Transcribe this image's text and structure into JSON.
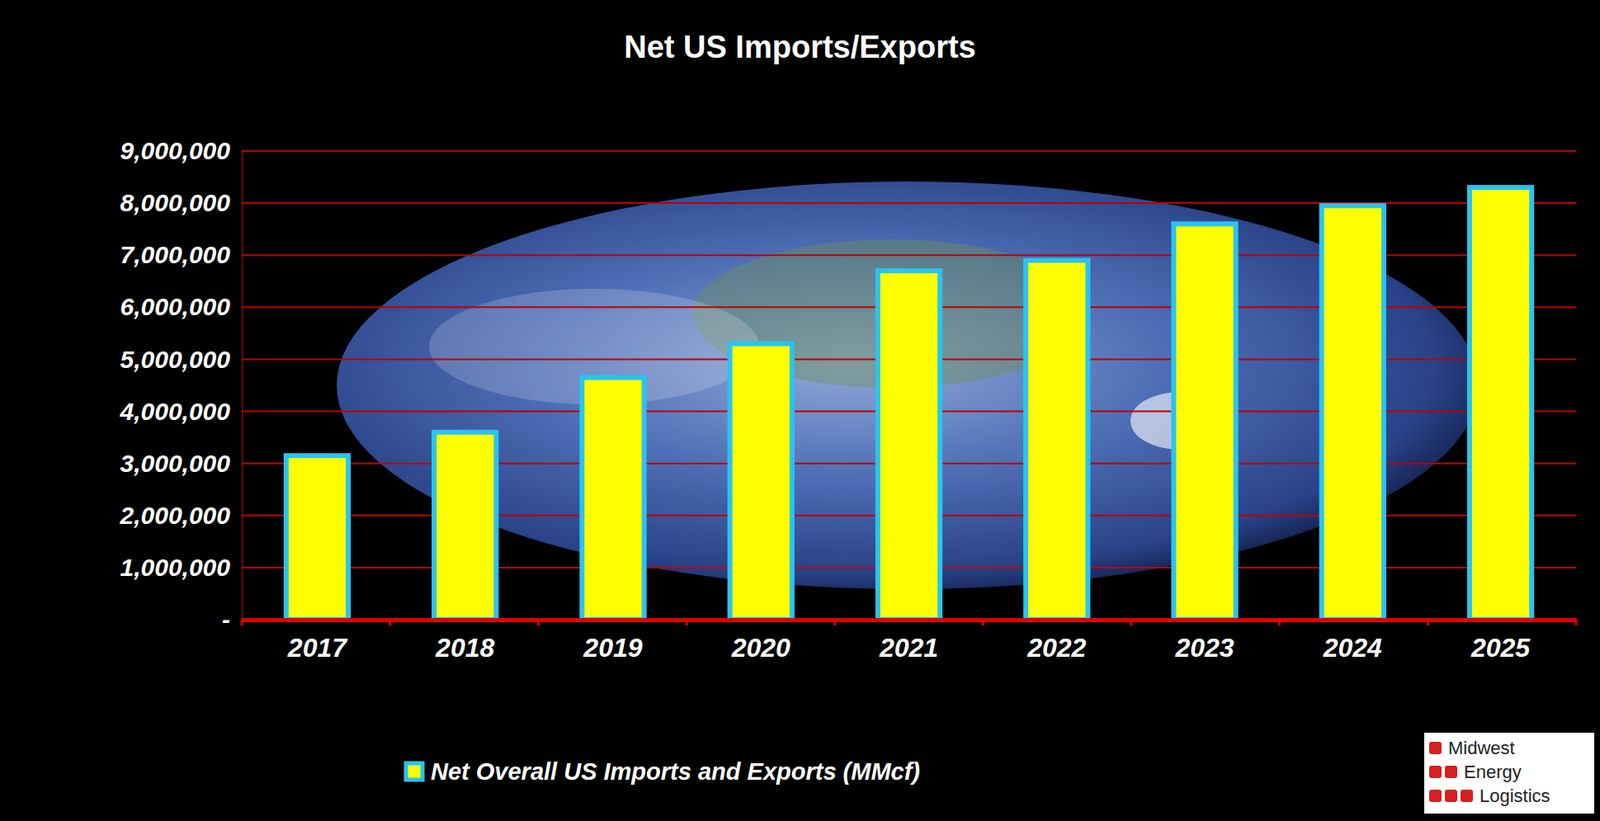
{
  "chart_data": {
    "type": "bar",
    "title": "Net US Imports/Exports",
    "categories": [
      "2017",
      "2018",
      "2019",
      "2020",
      "2021",
      "2022",
      "2023",
      "2024",
      "2025"
    ],
    "series": [
      {
        "name": "Net Overall US Imports and Exports (MMcf)",
        "color": "#ffff00",
        "values": [
          3150000,
          3600000,
          4650000,
          5300000,
          6700000,
          6900000,
          7600000,
          7950000,
          8300000
        ]
      }
    ],
    "ylim": [
      0,
      9000000
    ],
    "yticks": [
      {
        "value": 0,
        "label": "-"
      },
      {
        "value": 1000000,
        "label": "1,000,000"
      },
      {
        "value": 2000000,
        "label": "2,000,000"
      },
      {
        "value": 3000000,
        "label": "3,000,000"
      },
      {
        "value": 4000000,
        "label": "4,000,000"
      },
      {
        "value": 5000000,
        "label": "5,000,000"
      },
      {
        "value": 6000000,
        "label": "6,000,000"
      },
      {
        "value": 7000000,
        "label": "7,000,000"
      },
      {
        "value": 8000000,
        "label": "8,000,000"
      },
      {
        "value": 9000000,
        "label": "9,000,000"
      }
    ],
    "grid": true,
    "legend": "bottom",
    "annotations": [
      "Midwest",
      "Energy",
      "Logistics"
    ]
  }
}
